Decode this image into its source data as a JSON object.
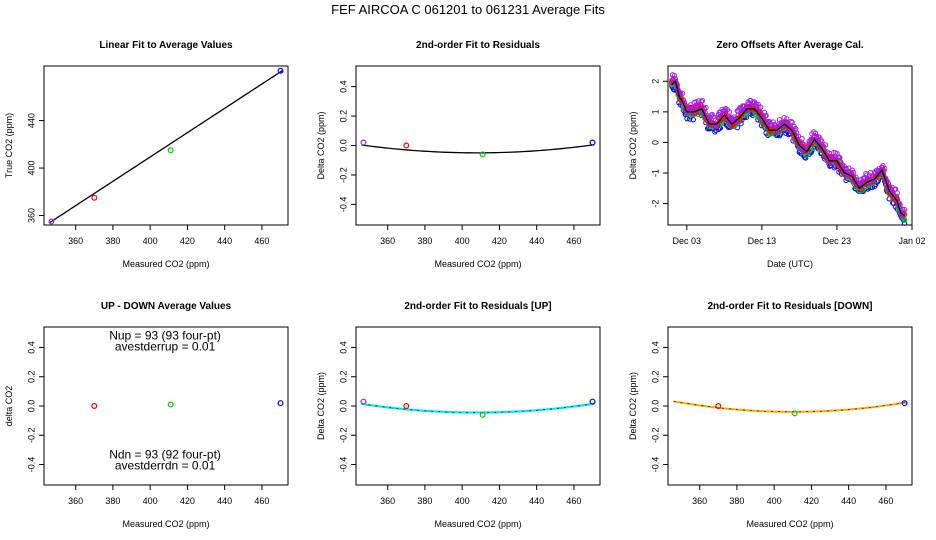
{
  "figure": {
    "title": "FEF   AIRCOA C   061201 to 061231   Average Fits"
  },
  "chart_data": [
    {
      "id": "p1",
      "type": "scatter",
      "title": "Linear Fit to Average Values",
      "xlabel": "Measured CO2 (ppm)",
      "ylabel": "True CO2 (ppm)",
      "xlim": [
        343,
        474
      ],
      "ylim": [
        352,
        486
      ],
      "xticks": [
        360,
        380,
        400,
        420,
        440,
        460
      ],
      "yticks": [
        360,
        400,
        440
      ],
      "points": [
        {
          "x": 347,
          "y": 355,
          "color": "#a020f0"
        },
        {
          "x": 370,
          "y": 375,
          "color": "#ff0000"
        },
        {
          "x": 411,
          "y": 415,
          "color": "#00cc00"
        },
        {
          "x": 470,
          "y": 482,
          "color": "#0000ff"
        }
      ],
      "curves": [
        {
          "type": "linear",
          "slope": 1.0252,
          "intercept": -0.75,
          "x_from": 346,
          "x_to": 471,
          "color": "#000000"
        }
      ]
    },
    {
      "id": "p2",
      "type": "scatter",
      "title": "2nd-order Fit to Residuals",
      "xlabel": "Measured CO2 (ppm)",
      "ylabel": "Delta CO2 (ppm)",
      "xlim": [
        343,
        474
      ],
      "ylim": [
        -0.54,
        0.54
      ],
      "xticks": [
        360,
        380,
        400,
        420,
        440,
        460
      ],
      "yticks": [
        -0.4,
        -0.2,
        0.0,
        0.2,
        0.4
      ],
      "points": [
        {
          "x": 347,
          "y": 0.02,
          "color": "#a020f0"
        },
        {
          "x": 370,
          "y": 0.0,
          "color": "#ff0000"
        },
        {
          "x": 411,
          "y": -0.06,
          "color": "#00cc00"
        },
        {
          "x": 470,
          "y": 0.02,
          "color": "#0000ff"
        }
      ],
      "curves": [
        {
          "type": "quadratic",
          "a": 1.4e-05,
          "vertex_x": 408,
          "vertex_y": -0.05,
          "x_from": 346,
          "x_to": 471,
          "color": "#000000"
        }
      ]
    },
    {
      "id": "p3",
      "type": "scatter",
      "title": "Zero Offsets After Average Cal.",
      "xlabel": "Date (UTC)",
      "ylabel": "Delta CO2 (ppm)",
      "x_axis": "date",
      "xlim": [
        "2006-11-30 12:00",
        "2007-01-02"
      ],
      "ylim": [
        -2.7,
        2.5
      ],
      "xticks": [
        {
          "date": "2006-12-03",
          "label": "Dec 03"
        },
        {
          "date": "2006-12-13",
          "label": "Dec 13"
        },
        {
          "date": "2006-12-23",
          "label": "Dec 23"
        },
        {
          "date": "2007-01-02",
          "label": "Jan 02"
        }
      ],
      "yticks": [
        -2,
        -1,
        0,
        1,
        2
      ],
      "series": [
        {
          "color": "#0000ff",
          "spread": 0.15
        },
        {
          "color": "#00cc00",
          "spread": 0.1
        },
        {
          "color": "#ff0000",
          "spread": 0.12
        },
        {
          "color": "#a020f0",
          "spread": 0.2
        }
      ],
      "trend": {
        "color": "#000000",
        "points": [
          [
            "2006-12-01",
            1.9
          ],
          [
            "2006-12-01 12:00",
            2.0
          ],
          [
            "2006-12-02",
            1.5
          ],
          [
            "2006-12-02 12:00",
            1.3
          ],
          [
            "2006-12-03",
            1.0
          ],
          [
            "2006-12-04",
            1.0
          ],
          [
            "2006-12-05",
            1.1
          ],
          [
            "2006-12-06",
            0.6
          ],
          [
            "2006-12-07",
            0.6
          ],
          [
            "2006-12-08",
            0.9
          ],
          [
            "2006-12-09",
            0.6
          ],
          [
            "2006-12-10",
            0.8
          ],
          [
            "2006-12-11",
            1.1
          ],
          [
            "2006-12-12",
            1.1
          ],
          [
            "2006-12-13",
            0.8
          ],
          [
            "2006-12-14",
            0.4
          ],
          [
            "2006-12-15",
            0.4
          ],
          [
            "2006-12-16",
            0.6
          ],
          [
            "2006-12-17",
            0.4
          ],
          [
            "2006-12-18",
            -0.1
          ],
          [
            "2006-12-19",
            -0.3
          ],
          [
            "2006-12-20",
            0.1
          ],
          [
            "2006-12-21",
            -0.2
          ],
          [
            "2006-12-22",
            -0.6
          ],
          [
            "2006-12-23",
            -0.6
          ],
          [
            "2006-12-24",
            -1.0
          ],
          [
            "2006-12-25",
            -1.1
          ],
          [
            "2006-12-26",
            -1.5
          ],
          [
            "2006-12-27",
            -1.3
          ],
          [
            "2006-12-28",
            -1.2
          ],
          [
            "2006-12-29",
            -0.9
          ],
          [
            "2006-12-30",
            -1.6
          ],
          [
            "2006-12-31",
            -1.9
          ],
          [
            "2006-12-31 12:00",
            -2.3
          ],
          [
            "2007-01-01",
            -2.4
          ]
        ]
      }
    },
    {
      "id": "p4",
      "type": "scatter",
      "title": "UP - DOWN Average Values",
      "xlabel": "Measured CO2 (ppm)",
      "ylabel": "delta CO2",
      "xlim": [
        343,
        474
      ],
      "ylim": [
        -0.54,
        0.54
      ],
      "xticks": [
        360,
        380,
        400,
        420,
        440,
        460
      ],
      "yticks": [
        -0.4,
        -0.2,
        0.0,
        0.2,
        0.4
      ],
      "points": [
        {
          "x": 370,
          "y": 0.0,
          "color": "#ff0000"
        },
        {
          "x": 411,
          "y": 0.01,
          "color": "#00cc00"
        },
        {
          "x": 470,
          "y": 0.02,
          "color": "#0000ff"
        }
      ],
      "annotations": [
        {
          "text": "Nup = 93 (93 four-pt)",
          "x": 408,
          "y": 0.455
        },
        {
          "text": "avestderrup =  0.01",
          "x": 408,
          "y": 0.38
        },
        {
          "text": "Ndn = 93 (92 four-pt)",
          "x": 408,
          "y": -0.36
        },
        {
          "text": "avestderrdn =  0.01",
          "x": 408,
          "y": -0.435
        }
      ]
    },
    {
      "id": "p5",
      "type": "scatter",
      "title": "2nd-order Fit to Residuals [UP]",
      "xlabel": "Measured CO2 (ppm)",
      "ylabel": "Delta CO2 (ppm)",
      "xlim": [
        343,
        474
      ],
      "ylim": [
        -0.54,
        0.54
      ],
      "xticks": [
        360,
        380,
        400,
        420,
        440,
        460
      ],
      "yticks": [
        -0.4,
        -0.2,
        0.0,
        0.2,
        0.4
      ],
      "points": [
        {
          "x": 347,
          "y": 0.03,
          "color": "#a020f0"
        },
        {
          "x": 370,
          "y": 0.0,
          "color": "#ff0000"
        },
        {
          "x": 411,
          "y": -0.06,
          "color": "#00cc00"
        },
        {
          "x": 470,
          "y": 0.03,
          "color": "#0000ff"
        }
      ],
      "curves": [
        {
          "type": "quadratic",
          "a": 1.55e-05,
          "vertex_x": 408,
          "vertex_y": -0.045,
          "x_from": 346,
          "x_to": 471,
          "color": "#00e5ee",
          "width": 2.2
        },
        {
          "type": "quadratic",
          "a": 1.55e-05,
          "vertex_x": 408,
          "vertex_y": -0.045,
          "x_from": 346,
          "x_to": 471,
          "color": "#000000",
          "width": 0.6,
          "dash": "2,5"
        }
      ]
    },
    {
      "id": "p6",
      "type": "scatter",
      "title": "2nd-order Fit to Residuals [DOWN]",
      "xlabel": "Measured CO2 (ppm)",
      "ylabel": "Delta CO2 (ppm)",
      "xlim": [
        343,
        474
      ],
      "ylim": [
        -0.54,
        0.54
      ],
      "xticks": [
        360,
        380,
        400,
        420,
        440,
        460
      ],
      "yticks": [
        -0.4,
        -0.2,
        0.0,
        0.2,
        0.4
      ],
      "points": [
        {
          "x": 370,
          "y": 0.0,
          "color": "#ff0000"
        },
        {
          "x": 411,
          "y": -0.05,
          "color": "#00cc00"
        },
        {
          "x": 470,
          "y": 0.02,
          "color": "#0000ff"
        }
      ],
      "curves": [
        {
          "type": "quadratic",
          "a": 1.75e-05,
          "vertex_x": 410,
          "vertex_y": -0.04,
          "x_from": 346,
          "x_to": 471,
          "color": "#ffa500",
          "width": 2.0
        },
        {
          "type": "quadratic",
          "a": 1.75e-05,
          "vertex_x": 410,
          "vertex_y": -0.04,
          "x_from": 346,
          "x_to": 471,
          "color": "#000000",
          "width": 0.6,
          "dash": "2,5"
        }
      ]
    }
  ]
}
